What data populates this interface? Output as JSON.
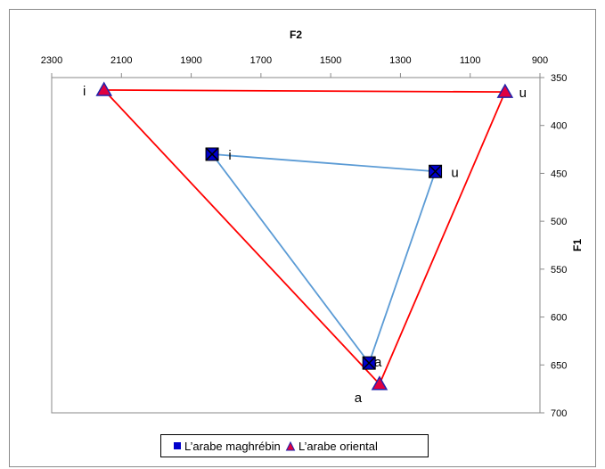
{
  "chart_data": {
    "type": "scatter",
    "title": "",
    "xlabel": "F2",
    "ylabel": "F1",
    "x_axis_position": "top",
    "y_axis_position": "right",
    "x_reversed": true,
    "y_reversed": true,
    "xlim": [
      900,
      2300
    ],
    "ylim": [
      350,
      700
    ],
    "xticks": [
      2300,
      2100,
      1900,
      1700,
      1500,
      1300,
      1100,
      900
    ],
    "yticks": [
      350,
      400,
      450,
      500,
      550,
      600,
      650,
      700
    ],
    "grid": false,
    "legend_position": "bottom",
    "series": [
      {
        "name": "L'arabe maghrébin",
        "marker": "square-x",
        "marker_color": "#0000CC",
        "line_color": "#5B9BD5",
        "closed": true,
        "points": [
          {
            "label": "i",
            "x": 1840,
            "y": 430
          },
          {
            "label": "u",
            "x": 1200,
            "y": 448
          },
          {
            "label": "a",
            "x": 1390,
            "y": 648
          }
        ]
      },
      {
        "name": "L'arabe oriental",
        "marker": "triangle",
        "marker_color": "#E00040",
        "marker_edge": "#2222AA",
        "line_color": "#FF0000",
        "closed": true,
        "points": [
          {
            "label": "i",
            "x": 2150,
            "y": 363
          },
          {
            "label": "u",
            "x": 1000,
            "y": 365
          },
          {
            "label": "a",
            "x": 1360,
            "y": 670
          }
        ]
      }
    ]
  },
  "legend": {
    "items": [
      "L’arabe maghrébin",
      "L’arabe oriental"
    ]
  }
}
